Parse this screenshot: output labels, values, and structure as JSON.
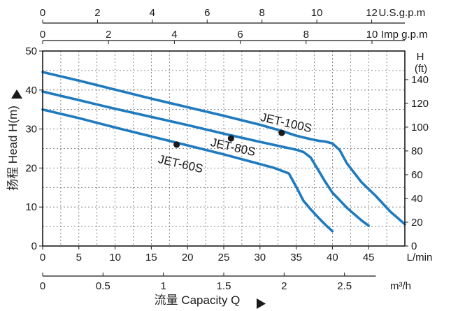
{
  "chart_data": {
    "type": "line",
    "title": "",
    "xlabel": "流量 Capacity Q",
    "ylabel": "扬程 Head H(m)",
    "xlim": [
      0,
      50
    ],
    "ylim": [
      0,
      50
    ],
    "x_ticks": [
      0,
      5,
      10,
      15,
      20,
      25,
      30,
      35,
      40,
      45
    ],
    "x_unit": "L/min",
    "y_ticks": [
      0,
      10,
      20,
      30,
      40,
      50
    ],
    "grid": true,
    "legend": "none",
    "axes": {
      "usgpm": {
        "label": "U.S.g.p.m",
        "ticks": [
          0,
          2,
          4,
          6,
          8,
          10,
          12
        ]
      },
      "impgpm": {
        "label": "Imp g.p.m",
        "ticks": [
          0,
          2,
          4,
          6,
          8,
          10
        ]
      },
      "m3h": {
        "label": "m³/h",
        "ticks": [
          "0",
          "0.5",
          "1",
          "1.5",
          "2",
          "2.5"
        ]
      },
      "feet": {
        "label": "H",
        "unit": "(ft)",
        "ticks": [
          0,
          20,
          40,
          60,
          80,
          100,
          120,
          140
        ]
      }
    },
    "series": [
      {
        "name": "JET-60S",
        "color": "#1f7bbf",
        "x": [
          0,
          5,
          10,
          15,
          20,
          25,
          30,
          32,
          34,
          35,
          36,
          37,
          38,
          39,
          40
        ],
        "y": [
          35,
          32.8,
          30.4,
          28.1,
          25.8,
          23.5,
          21.0,
          20.0,
          18.6,
          15.2,
          11.6,
          9.4,
          7.4,
          5.5,
          3.8
        ]
      },
      {
        "name": "JET-80S",
        "color": "#1f7bbf",
        "x": [
          0,
          5,
          10,
          15,
          20,
          25,
          30,
          33,
          35,
          36,
          37,
          38,
          39,
          40,
          42,
          44,
          45
        ],
        "y": [
          39.6,
          37.4,
          35.2,
          33.1,
          31.0,
          28.8,
          26.7,
          25.5,
          24.7,
          24.1,
          22.7,
          19.6,
          16.5,
          13.7,
          9.8,
          6.6,
          5.2
        ]
      },
      {
        "name": "JET-100S",
        "color": "#1f7bbf",
        "x": [
          0,
          5,
          10,
          15,
          20,
          25,
          30,
          33,
          35,
          37,
          38,
          39,
          40,
          41,
          42,
          44,
          46,
          48,
          50
        ],
        "y": [
          44.6,
          42.4,
          40.1,
          37.8,
          35.6,
          33.4,
          31.1,
          29.5,
          28.3,
          27.4,
          27.0,
          26.8,
          26.3,
          24.6,
          21.2,
          16.4,
          12.8,
          8.8,
          5.6
        ]
      }
    ],
    "points": [
      {
        "series": "JET-60S",
        "x": 18.5,
        "y": 26.0
      },
      {
        "series": "JET-80S",
        "x": 26.0,
        "y": 27.6
      },
      {
        "series": "JET-100S",
        "x": 33.0,
        "y": 29.0
      }
    ],
    "annotations": [
      {
        "text": "JET-100S",
        "series": "JET-100S"
      },
      {
        "text": "JET-80S",
        "series": "JET-80S"
      },
      {
        "text": "JET-60S",
        "series": "JET-60S"
      }
    ]
  }
}
